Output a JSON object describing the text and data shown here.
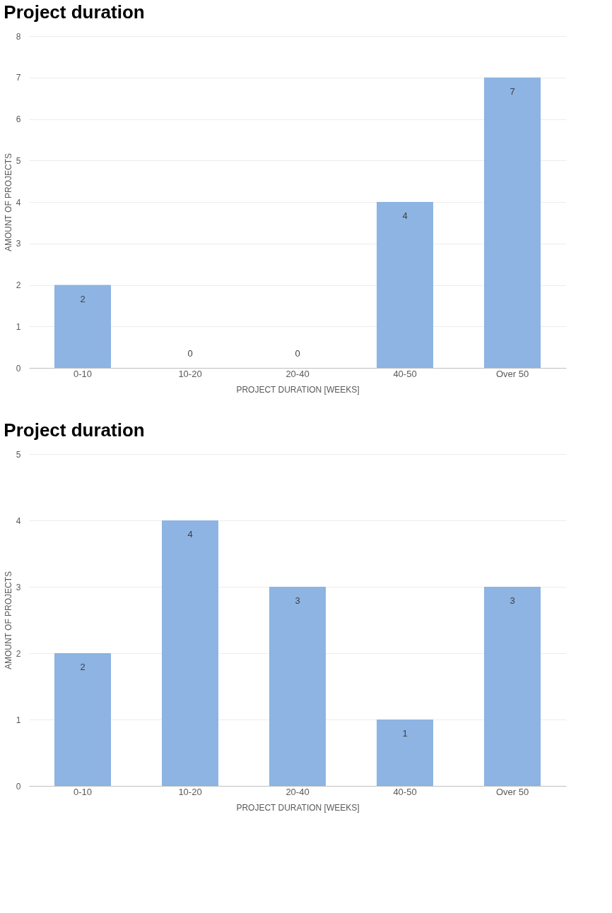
{
  "chart_data": [
    {
      "type": "bar",
      "title": "Project duration",
      "xlabel": "PROJECT DURATION [WEEKS]",
      "ylabel": "AMOUNT OF PROJECTS",
      "categories": [
        "0-10",
        "10-20",
        "20-40",
        "40-50",
        "Over 50"
      ],
      "values": [
        2,
        0,
        0,
        4,
        7
      ],
      "color": "#8db4e2",
      "ylim": [
        0,
        8
      ],
      "yticks": [
        0,
        1,
        2,
        3,
        4,
        5,
        6,
        7,
        8
      ],
      "grid": "y",
      "data_labels": true
    },
    {
      "type": "bar",
      "title": "Project duration",
      "xlabel": "PROJECT DURATION [WEEKS]",
      "ylabel": "AMOUNT OF PROJECTS",
      "categories": [
        "0-10",
        "10-20",
        "20-40",
        "40-50",
        "Over 50"
      ],
      "values": [
        2,
        4,
        3,
        1,
        3
      ],
      "color": "#8db4e2",
      "ylim": [
        0,
        5
      ],
      "yticks": [
        0,
        1,
        2,
        3,
        4,
        5
      ],
      "grid": "y",
      "data_labels": true
    }
  ]
}
